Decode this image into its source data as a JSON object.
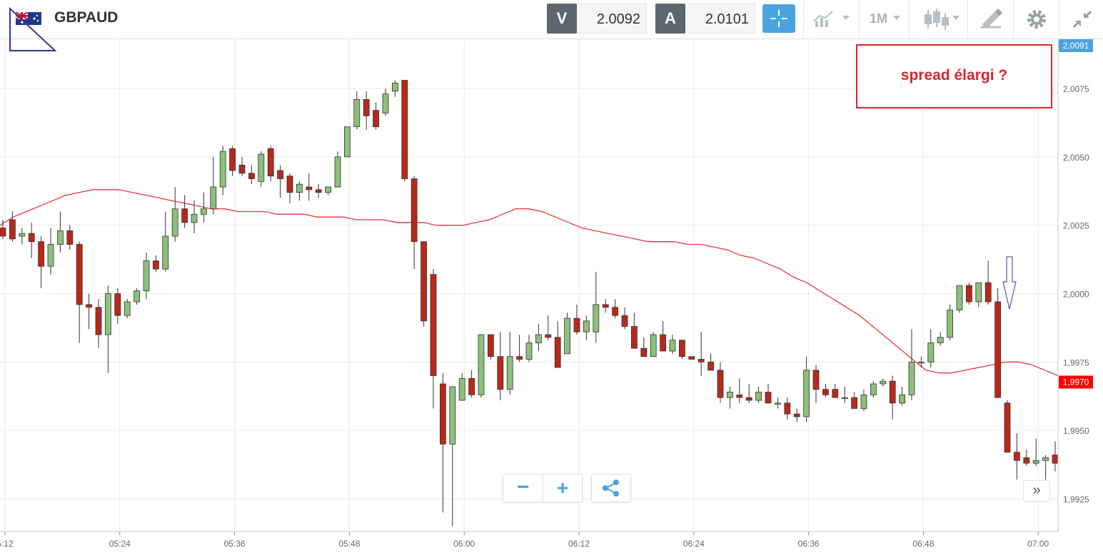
{
  "header": {
    "symbol": "GBPAUD",
    "sell_label": "V",
    "sell_price": "2.0092",
    "buy_label": "A",
    "buy_price": "2.0101",
    "timeframe": "1M"
  },
  "annotation": {
    "text": "spread élargi ?",
    "color": "#d7262e"
  },
  "controls": {
    "zoom_out": "−",
    "zoom_in": "+",
    "scroll_right": "»"
  },
  "colors": {
    "up": "#8dc07a",
    "down": "#b9281b",
    "ma": "#e8373c",
    "accent": "#4aa3df",
    "current_price": "#4aa3df",
    "ma_price": "#ff0000"
  },
  "icons": [
    "flag-icon",
    "crosshair-icon",
    "chart-type-icon",
    "candlestick-icon",
    "drawing-tool-icon",
    "gear-icon",
    "collapse-icon",
    "share-icon",
    "down-arrow-icon"
  ],
  "chart_data": {
    "type": "candlestick",
    "x_ticks": [
      "5:12",
      "05:24",
      "05:36",
      "05:48",
      "06:00",
      "06:12",
      "06:24",
      "06:36",
      "06:48",
      "07:00"
    ],
    "y_ticks": [
      "1,9925",
      "1,9950",
      "1,9975",
      "2,0000",
      "2,0025",
      "2,0050",
      "2,0075"
    ],
    "ylim": [
      1.9913,
      2.0093
    ],
    "current_price_label": "2,0091",
    "ma_label": "1,9970",
    "grid": true,
    "ohlc": [
      [
        2.0024,
        2.0027,
        2.002,
        2.0021
      ],
      [
        2.0027,
        2.003,
        2.0019,
        2.002
      ],
      [
        2.0021,
        2.0024,
        2.0018,
        2.0022
      ],
      [
        2.0022,
        2.0026,
        2.0013,
        2.0019
      ],
      [
        2.0019,
        2.0021,
        2.0002,
        2.001
      ],
      [
        2.001,
        2.0024,
        2.0007,
        2.0018
      ],
      [
        2.0018,
        2.003,
        2.0015,
        2.0023
      ],
      [
        2.0023,
        2.0025,
        2.0016,
        2.0018
      ],
      [
        2.0018,
        2.0019,
        1.9982,
        1.9996
      ],
      [
        1.9996,
        2.0,
        1.9987,
        1.9995
      ],
      [
        1.9995,
        1.9998,
        1.998,
        1.9985
      ],
      [
        1.9985,
        2.0003,
        1.9971,
        2.0
      ],
      [
        2.0,
        2.0002,
        1.9989,
        1.9992
      ],
      [
        1.9992,
        1.9998,
        1.9991,
        1.9997
      ],
      [
        1.9997,
        2.0002,
        1.9996,
        2.0001
      ],
      [
        2.0001,
        2.0015,
        1.9998,
        2.0012
      ],
      [
        2.0012,
        2.0014,
        2.0008,
        2.0009
      ],
      [
        2.0009,
        2.003,
        2.0008,
        2.0021
      ],
      [
        2.0021,
        2.0039,
        2.0019,
        2.0031
      ],
      [
        2.0031,
        2.0036,
        2.0024,
        2.0026
      ],
      [
        2.0026,
        2.0034,
        2.0022,
        2.0029
      ],
      [
        2.0029,
        2.0037,
        2.0026,
        2.0031
      ],
      [
        2.0031,
        2.005,
        2.0029,
        2.0039
      ],
      [
        2.0039,
        2.0054,
        2.0036,
        2.0052
      ],
      [
        2.0053,
        2.0054,
        2.0043,
        2.0045
      ],
      [
        2.0047,
        2.005,
        2.0043,
        2.0044
      ],
      [
        2.0044,
        2.0047,
        2.004,
        2.0042
      ],
      [
        2.0041,
        2.0052,
        2.0039,
        2.0051
      ],
      [
        2.0053,
        2.0054,
        2.0041,
        2.0043
      ],
      [
        2.0045,
        2.0047,
        2.0035,
        2.0042
      ],
      [
        2.0043,
        2.0044,
        2.0033,
        2.0037
      ],
      [
        2.0037,
        2.0041,
        2.0034,
        2.004
      ],
      [
        2.0039,
        2.0044,
        2.0034,
        2.0038
      ],
      [
        2.0038,
        2.004,
        2.0035,
        2.0037
      ],
      [
        2.0037,
        2.0039,
        2.0036,
        2.0039
      ],
      [
        2.0039,
        2.0052,
        2.0039,
        2.005
      ],
      [
        2.005,
        2.0061,
        2.005,
        2.0061
      ],
      [
        2.0061,
        2.0074,
        2.006,
        2.0071
      ],
      [
        2.0071,
        2.0074,
        2.006,
        2.0065
      ],
      [
        2.0067,
        2.007,
        2.006,
        2.0061
      ],
      [
        2.0066,
        2.0075,
        2.0065,
        2.0073
      ],
      [
        2.0074,
        2.0078,
        2.0072,
        2.0077
      ],
      [
        2.0078,
        2.0078,
        2.0041,
        2.0042
      ],
      [
        2.0042,
        2.0043,
        2.0009,
        2.0019
      ],
      [
        2.0019,
        2.0019,
        1.9988,
        1.999
      ],
      [
        2.0007,
        2.0009,
        1.9958,
        1.997
      ],
      [
        1.9967,
        1.9971,
        1.992,
        1.9945
      ],
      [
        1.9945,
        1.9965,
        1.9915,
        1.9966
      ],
      [
        1.9961,
        1.9971,
        1.9961,
        1.9969
      ],
      [
        1.9969,
        1.9972,
        1.9962,
        1.9963
      ],
      [
        1.9963,
        1.9985,
        1.9962,
        1.9985
      ],
      [
        1.9985,
        1.9985,
        1.9976,
        1.9977
      ],
      [
        1.9977,
        1.9986,
        1.9961,
        1.9965
      ],
      [
        1.9965,
        1.9986,
        1.9963,
        1.9977
      ],
      [
        1.9977,
        1.9985,
        1.9975,
        1.9976
      ],
      [
        1.9976,
        1.9985,
        1.9975,
        1.9982
      ],
      [
        1.9982,
        1.9989,
        1.9979,
        1.9985
      ],
      [
        1.9985,
        1.9992,
        1.9983,
        1.9984
      ],
      [
        1.9984,
        1.999,
        1.9973,
        1.9973
      ],
      [
        1.9978,
        1.9993,
        1.9978,
        1.9991
      ],
      [
        1.9991,
        1.9996,
        1.9985,
        1.9986
      ],
      [
        1.9986,
        1.9992,
        1.9983,
        1.999
      ],
      [
        1.9986,
        2.0008,
        1.9982,
        1.9996
      ],
      [
        1.9996,
        1.9998,
        1.9993,
        1.9995
      ],
      [
        1.9995,
        1.9998,
        1.9991,
        1.9992
      ],
      [
        1.9992,
        1.9995,
        1.9987,
        1.9988
      ],
      [
        1.9988,
        1.9993,
        1.998,
        1.998
      ],
      [
        1.998,
        1.9984,
        1.9977,
        1.9977
      ],
      [
        1.9977,
        1.9986,
        1.9977,
        1.9985
      ],
      [
        1.9985,
        1.999,
        1.9979,
        1.9979
      ],
      [
        1.9979,
        1.9985,
        1.9978,
        1.9983
      ],
      [
        1.9983,
        1.9983,
        1.9976,
        1.9977
      ],
      [
        1.9977,
        1.9977,
        1.9976,
        1.9976
      ],
      [
        1.9976,
        1.9986,
        1.997,
        1.9975
      ],
      [
        1.9975,
        1.9978,
        1.9972,
        1.9972
      ],
      [
        1.9972,
        1.9975,
        1.996,
        1.9962
      ],
      [
        1.9962,
        1.9966,
        1.9958,
        1.9964
      ],
      [
        1.9963,
        1.9969,
        1.996,
        1.9962
      ],
      [
        1.9962,
        1.9967,
        1.996,
        1.9961
      ],
      [
        1.9961,
        1.9966,
        1.996,
        1.9964
      ],
      [
        1.9964,
        1.9967,
        1.996,
        1.996
      ],
      [
        1.996,
        1.9962,
        1.9958,
        1.996
      ],
      [
        1.996,
        1.9962,
        1.9954,
        1.9956
      ],
      [
        1.9956,
        1.9958,
        1.9953,
        1.9955
      ],
      [
        1.9955,
        1.9977,
        1.9953,
        1.9972
      ],
      [
        1.9972,
        1.9974,
        1.996,
        1.9965
      ],
      [
        1.9965,
        1.9967,
        1.9962,
        1.9963
      ],
      [
        1.9965,
        1.9967,
        1.9962,
        1.9962
      ],
      [
        1.9962,
        1.9966,
        1.996,
        1.9962
      ],
      [
        1.9962,
        1.9964,
        1.9958,
        1.9958
      ],
      [
        1.9958,
        1.9965,
        1.9957,
        1.9963
      ],
      [
        1.9963,
        1.9968,
        1.9962,
        1.9967
      ],
      [
        1.9967,
        1.9969,
        1.9966,
        1.9968
      ],
      [
        1.9968,
        1.997,
        1.9954,
        1.996
      ],
      [
        1.996,
        1.9966,
        1.9959,
        1.9963
      ],
      [
        1.9963,
        1.9987,
        1.9961,
        1.9975
      ],
      [
        1.9975,
        1.9977,
        1.9973,
        1.9975
      ],
      [
        1.9975,
        1.9987,
        1.9973,
        1.9982
      ],
      [
        1.9982,
        1.9986,
        1.9981,
        1.9984
      ],
      [
        1.9984,
        1.9996,
        1.9983,
        1.9994
      ],
      [
        1.9994,
        2.0003,
        1.9993,
        2.0003
      ],
      [
        2.0003,
        2.0004,
        1.9996,
        1.9997
      ],
      [
        1.9997,
        2.0004,
        1.9995,
        2.0004
      ],
      [
        2.0004,
        2.0012,
        1.9996,
        1.9997
      ],
      [
        1.9997,
        2.0002,
        1.9962,
        1.9962
      ],
      [
        1.996,
        1.9961,
        1.9942,
        1.9942
      ],
      [
        1.9942,
        1.9949,
        1.9932,
        1.9939
      ],
      [
        1.994,
        1.9943,
        1.9937,
        1.9938
      ],
      [
        1.9938,
        1.9947,
        1.9937,
        1.9939
      ],
      [
        1.9939,
        1.9941,
        1.9932,
        1.994
      ],
      [
        1.9941,
        1.9946,
        1.9935,
        1.9938
      ]
    ],
    "ma_series": [
      2.0025,
      2.0028,
      2.003,
      2.0032,
      2.0034,
      2.0036,
      2.0037,
      2.0038,
      2.0038,
      2.0038,
      2.0037,
      2.0036,
      2.0035,
      2.0034,
      2.0033,
      2.0032,
      2.0031,
      2.0031,
      2.003,
      2.003,
      2.003,
      2.0029,
      2.0029,
      2.0029,
      2.0028,
      2.0028,
      2.0028,
      2.0027,
      2.0027,
      2.0027,
      2.0026,
      2.0026,
      2.0026,
      2.0025,
      2.0025,
      2.0025,
      2.0026,
      2.0027,
      2.0029,
      2.0031,
      2.0031,
      2.003,
      2.0028,
      2.0026,
      2.0024,
      2.0023,
      2.0022,
      2.0021,
      2.002,
      2.0019,
      2.0019,
      2.0019,
      2.0018,
      2.0018,
      2.0017,
      2.0016,
      2.0014,
      2.0013,
      2.0011,
      2.0009,
      2.0006,
      2.0004,
      2.0001,
      1.9998,
      1.9995,
      1.9992,
      1.9988,
      1.9984,
      1.998,
      1.9976,
      1.9972,
      1.9971,
      1.9971,
      1.9972,
      1.9973,
      1.9974,
      1.9975,
      1.9975,
      1.9974,
      1.9972,
      1.997
    ]
  }
}
